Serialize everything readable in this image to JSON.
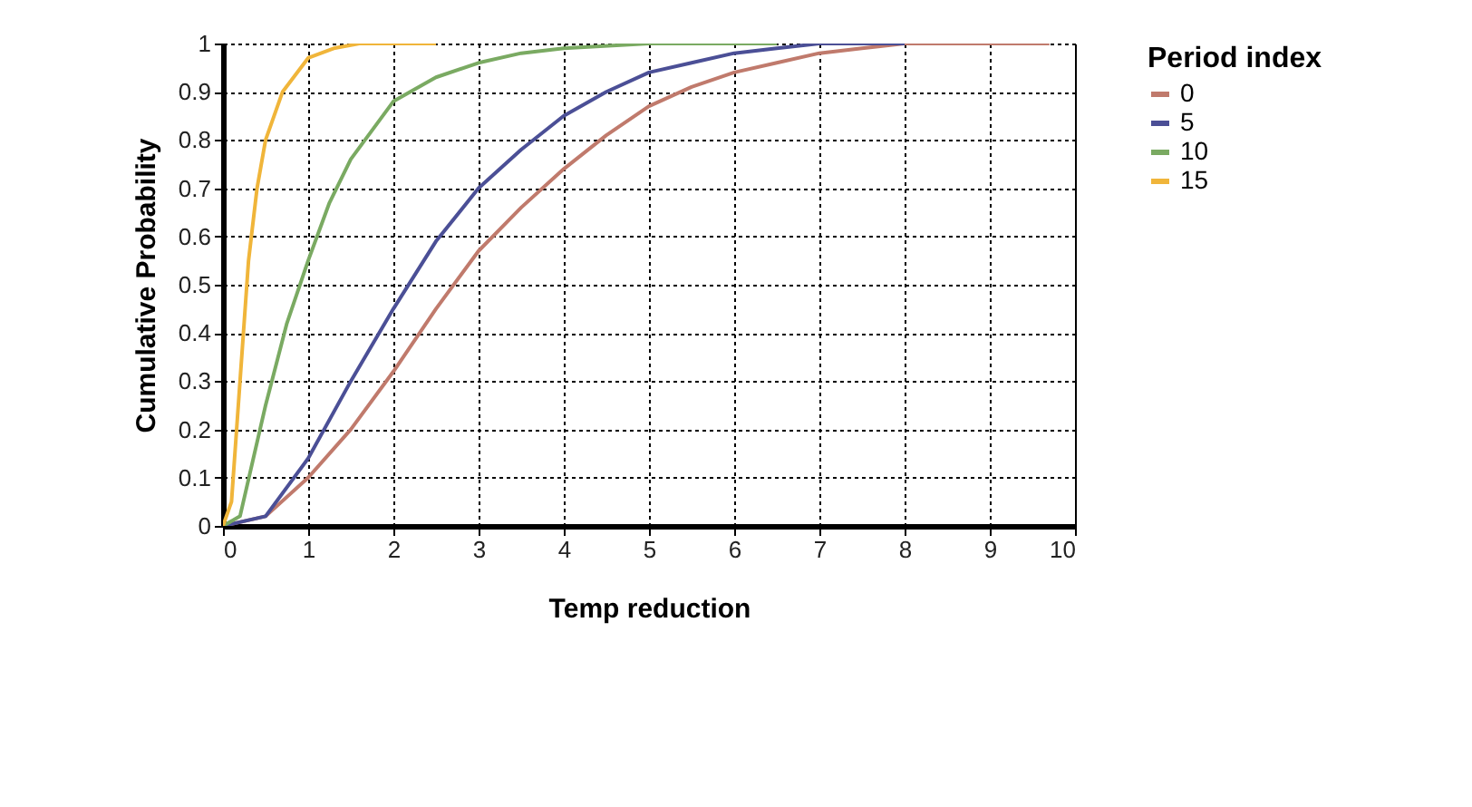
{
  "chart_data": {
    "type": "line",
    "xlabel": "Temp reduction",
    "ylabel": "Cumulative Probability",
    "legend_title": "Period index",
    "legend": "right",
    "grid": true,
    "xlim": [
      0,
      10
    ],
    "xticks": [
      0,
      1,
      2,
      3,
      4,
      5,
      6,
      7,
      8,
      9,
      10
    ],
    "ylim": [
      0,
      1
    ],
    "yticks": [
      0,
      0.1,
      0.2,
      0.3,
      0.4,
      0.5,
      0.6,
      0.7,
      0.8,
      0.9,
      1
    ],
    "series": [
      {
        "name": "0",
        "color": "#c07a6c",
        "x": [
          0,
          0.5,
          1,
          1.5,
          2,
          2.5,
          3,
          3.5,
          4,
          4.5,
          5,
          5.5,
          6,
          6.5,
          7,
          7.5,
          8,
          9,
          9.7
        ],
        "values": [
          0,
          0.02,
          0.1,
          0.2,
          0.32,
          0.45,
          0.57,
          0.66,
          0.74,
          0.81,
          0.87,
          0.91,
          0.94,
          0.96,
          0.98,
          0.99,
          1,
          1,
          1
        ]
      },
      {
        "name": "5",
        "color": "#4b4f96",
        "x": [
          0,
          0.5,
          1,
          1.5,
          2,
          2.5,
          3,
          3.5,
          4,
          4.5,
          5,
          5.5,
          6,
          6.5,
          7,
          8
        ],
        "values": [
          0,
          0.02,
          0.14,
          0.3,
          0.45,
          0.59,
          0.7,
          0.78,
          0.85,
          0.9,
          0.94,
          0.96,
          0.98,
          0.99,
          1,
          1
        ]
      },
      {
        "name": "10",
        "color": "#7aaa62",
        "x": [
          0,
          0.2,
          0.5,
          0.75,
          1,
          1.25,
          1.5,
          2,
          2.5,
          3,
          3.5,
          4,
          5,
          6.5
        ],
        "values": [
          0,
          0.02,
          0.25,
          0.42,
          0.55,
          0.67,
          0.76,
          0.88,
          0.93,
          0.96,
          0.98,
          0.99,
          1,
          1
        ]
      },
      {
        "name": "15",
        "color": "#f0b53a",
        "x": [
          0,
          0.1,
          0.2,
          0.3,
          0.4,
          0.5,
          0.7,
          1,
          1.3,
          1.6,
          2.5
        ],
        "values": [
          0,
          0.05,
          0.3,
          0.55,
          0.7,
          0.8,
          0.9,
          0.97,
          0.99,
          1,
          1
        ]
      }
    ]
  }
}
